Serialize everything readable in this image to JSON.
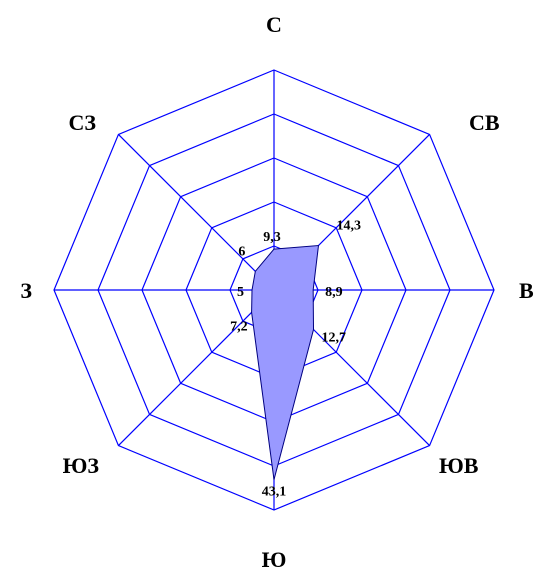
{
  "chart_data": {
    "type": "radar",
    "categories": [
      "С",
      "СВ",
      "В",
      "ЮВ",
      "Ю",
      "ЮЗ",
      "З",
      "СЗ"
    ],
    "values": [
      9.3,
      14.3,
      8.9,
      12.7,
      43.1,
      7.2,
      5,
      6
    ],
    "value_labels": [
      "9,3",
      "14,3",
      "8,9",
      "12,7",
      "43,1",
      "7,2",
      "5",
      "6"
    ],
    "rmax": 50,
    "rings": 5,
    "colors": {
      "grid": "#0000ff",
      "fill": "#9999ff",
      "stroke": "#000080"
    }
  }
}
